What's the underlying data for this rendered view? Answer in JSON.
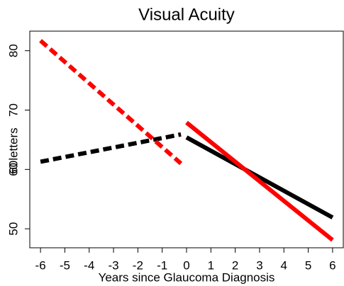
{
  "chart_data": {
    "type": "line",
    "title": "Visual Acuity",
    "x_label": "Years since Glaucoma Diagnosis",
    "y_label": "60letters",
    "xlim": [
      -6.44,
      6.44
    ],
    "ylim": [
      46.8,
      83.3
    ],
    "xticks": [
      -6,
      -5,
      -4,
      -3,
      -2,
      -1,
      0,
      1,
      2,
      3,
      4,
      5,
      6
    ],
    "yticks": [
      50,
      60,
      70,
      80
    ],
    "series": [
      {
        "color": "#000000",
        "dashed": true,
        "x": [
          -6,
          -0.23
        ],
        "values": [
          61.3,
          65.9
        ]
      },
      {
        "color": "#ff0000",
        "dashed": true,
        "x": [
          -6,
          -0.23
        ],
        "values": [
          81.7,
          61.0
        ]
      },
      {
        "color": "#000000",
        "dashed": false,
        "x": [
          0,
          6
        ],
        "values": [
          65.4,
          51.9
        ]
      },
      {
        "color": "#ff0000",
        "dashed": false,
        "x": [
          0,
          6
        ],
        "values": [
          67.9,
          48.1
        ]
      }
    ]
  }
}
